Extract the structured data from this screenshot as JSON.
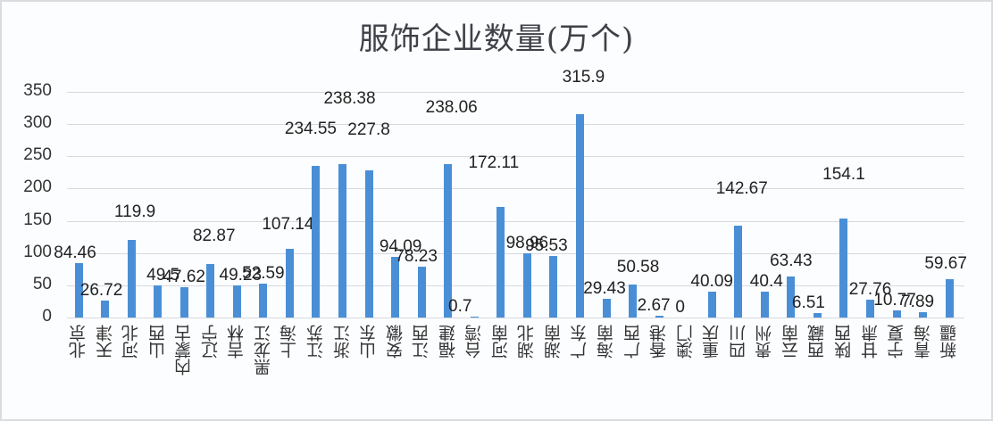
{
  "chart_data": {
    "type": "bar",
    "title": "服饰企业数量(万个)",
    "xlabel": "",
    "ylabel": "",
    "ylim": [
      0,
      350
    ],
    "yticks": [
      0,
      50,
      100,
      150,
      200,
      250,
      300,
      350
    ],
    "grid": true,
    "legend": null,
    "bar_color": "#4a8fd6",
    "categories": [
      "北京",
      "天津",
      "河北",
      "山西",
      "内蒙古",
      "辽宁",
      "吉林",
      "黑龙江",
      "上海",
      "江苏",
      "浙江",
      "山东",
      "安徽",
      "江西",
      "福建",
      "台湾",
      "河南",
      "湖北",
      "湖南",
      "广东",
      "海南",
      "广西",
      "香港",
      "澳门",
      "重庆",
      "四川",
      "贵州",
      "云南",
      "西藏",
      "陕西",
      "甘肃",
      "宁夏",
      "青海",
      "新疆"
    ],
    "values": [
      84.46,
      26.72,
      119.9,
      49.5,
      47.62,
      82.87,
      49.23,
      52.59,
      107.14,
      234.55,
      238.38,
      227.8,
      94.09,
      78.23,
      238.06,
      0.7,
      172.11,
      98.96,
      95.53,
      315.9,
      29.43,
      50.58,
      2.67,
      0,
      40.09,
      142.67,
      40.4,
      63.43,
      6.51,
      154.1,
      27.76,
      10.77,
      7.89,
      59.67
    ],
    "labels": [
      "84.46",
      "26.72",
      "119.9",
      "49.5",
      "47.62",
      "82.87",
      "49.23",
      "52.59",
      "107.14",
      "234.55",
      "238.38",
      "227.8",
      "94.09",
      "78.23",
      "238.06",
      "0.7",
      "172.11",
      "98.96",
      "95.53",
      "315.9",
      "29.43",
      "50.58",
      "2.67",
      "0",
      "40.09",
      "142.67",
      "40.4",
      "63.43",
      "6.51",
      "154.1",
      "27.76",
      "10.77",
      "7.89",
      "59.67"
    ]
  }
}
